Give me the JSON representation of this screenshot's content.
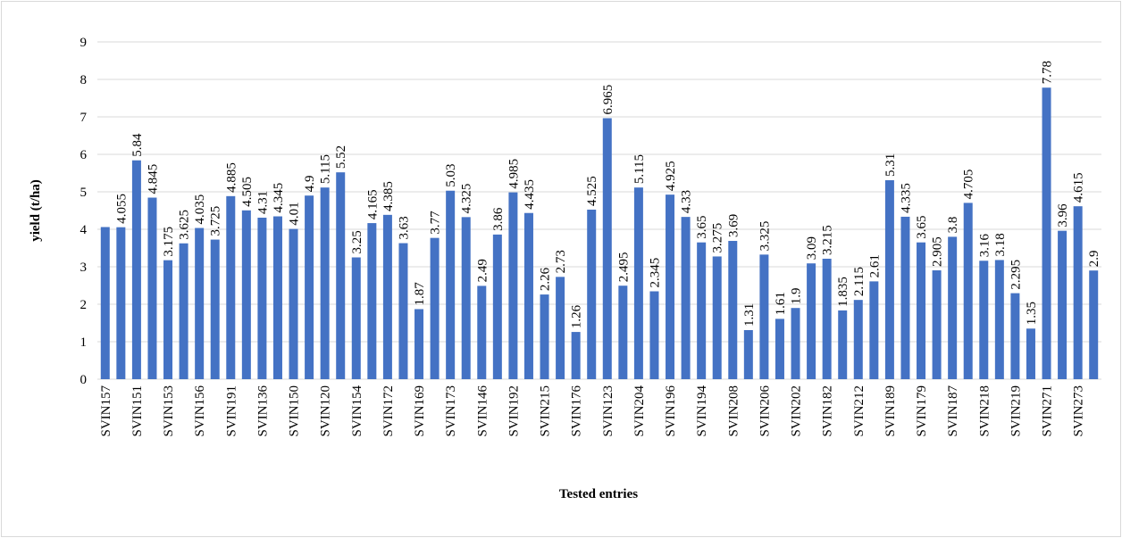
{
  "chart_data": {
    "type": "bar",
    "x_label": "Tested entries",
    "y_label": "yield (t/ha)",
    "color": "#4472c4",
    "ylim": [
      0,
      9
    ],
    "yticks": [
      0,
      1,
      2,
      3,
      4,
      5,
      6,
      7,
      8,
      9
    ],
    "grid": true,
    "categories": [
      "SVIN157",
      null,
      "SVIN151",
      null,
      "SVIN153",
      null,
      "SVIN156",
      null,
      "SVIN191",
      null,
      "SVIN136",
      null,
      "SVIN150",
      null,
      "SVIN120",
      null,
      "SVIN154",
      null,
      "SVIN172",
      null,
      "SVIN169",
      null,
      "SVIN173",
      null,
      "SVIN146",
      null,
      "SVIN192",
      null,
      "SVIN215",
      null,
      "SVIN176",
      null,
      "SVIN123",
      null,
      "SVIN204",
      null,
      "SVIN196",
      null,
      "SVIN194",
      null,
      "SVIN208",
      null,
      "SVIN206",
      null,
      "SVIN202",
      null,
      "SVIN182",
      null,
      "SVIN212",
      null,
      "SVIN189",
      null,
      "SVIN179",
      null,
      "SVIN187",
      null,
      "SVIN218",
      null,
      "SVIN219",
      null,
      "SVIN271",
      null,
      "SVIN273",
      null
    ],
    "values": [
      4.06,
      4.055,
      5.84,
      4.845,
      3.175,
      3.625,
      4.035,
      3.725,
      4.885,
      4.505,
      4.31,
      4.345,
      4.01,
      4.9,
      5.115,
      5.52,
      3.25,
      4.165,
      4.385,
      3.63,
      1.87,
      3.77,
      5.03,
      4.325,
      2.49,
      3.86,
      4.985,
      4.435,
      2.26,
      2.73,
      1.26,
      4.525,
      6.965,
      2.495,
      5.115,
      2.345,
      4.925,
      4.33,
      3.65,
      3.275,
      3.69,
      1.31,
      3.325,
      1.61,
      1.9,
      3.09,
      3.215,
      1.835,
      2.115,
      2.61,
      5.31,
      4.335,
      3.65,
      2.905,
      3.8,
      4.705,
      3.16,
      3.18,
      2.295,
      1.35,
      7.78,
      3.96,
      4.615,
      2.9
    ],
    "value_labels": [
      null,
      "4.055",
      "5.84",
      "4.845",
      "3.175",
      "3.625",
      "4.035",
      "3.725",
      "4.885",
      "4.505",
      "4.31",
      "4.345",
      "4.01",
      "4.9",
      "5.115",
      "5.52",
      "3.25",
      "4.165",
      "4.385",
      "3.63",
      "1.87",
      "3.77",
      "5.03",
      "4.325",
      "2.49",
      "3.86",
      "4.985",
      "4.435",
      "2.26",
      "2.73",
      "1.26",
      "4.525",
      "6.965",
      "2.495",
      "5.115",
      "2.345",
      "4.925",
      "4.33",
      "3.65",
      "3.275",
      "3.69",
      "1.31",
      "3.325",
      "1.61",
      "1.9",
      "3.09",
      "3.215",
      "1.835",
      "2.115",
      "2.61",
      "5.31",
      "4.335",
      "3.65",
      "2.905",
      "3.8",
      "4.705",
      "3.16",
      "3.18",
      "2.295",
      "1.35",
      "7.78",
      "3.96",
      "4.615",
      "2.9"
    ]
  }
}
